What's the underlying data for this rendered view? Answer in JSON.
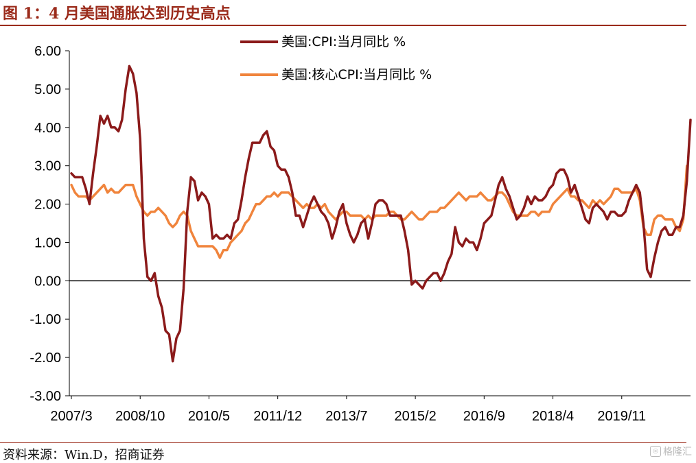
{
  "header": {
    "title": "图 1：4 月美国通胀达到历史高点"
  },
  "footer": {
    "source": "资料来源：Win.D，招商证券",
    "watermark": "格隆汇"
  },
  "colors": {
    "accent": "#9b2b1b",
    "cpi": "#8b1a1a",
    "core": "#f0843c"
  },
  "chart_data": {
    "type": "line",
    "title": "4 月美国通胀达到历史高点",
    "xlabel": "",
    "ylabel": "",
    "ylim": [
      -3.0,
      6.0
    ],
    "yticks": [
      6.0,
      5.0,
      4.0,
      3.0,
      2.0,
      1.0,
      0.0,
      -1.0,
      -2.0,
      -3.0
    ],
    "ytick_labels": [
      "6.00",
      "5.00",
      "4.00",
      "3.00",
      "2.00",
      "1.00",
      "0.00",
      "-1.00",
      "-2.00",
      "-3.00"
    ],
    "x_start": "2007/3",
    "x_end": "2021/4",
    "xtick_labels": [
      "2007/3",
      "2008/10",
      "2010/5",
      "2011/12",
      "2013/7",
      "2015/2",
      "2016/9",
      "2018/4",
      "2019/11"
    ],
    "xtick_index": [
      0,
      19,
      38,
      57,
      76,
      95,
      114,
      133,
      152
    ],
    "legend_position": "top-center",
    "series": [
      {
        "name": "美国:CPI:当月同比 %",
        "color": "#8b1a1a",
        "values": [
          2.8,
          2.7,
          2.7,
          2.7,
          2.4,
          2.0,
          2.8,
          3.5,
          4.3,
          4.1,
          4.3,
          4.0,
          4.0,
          3.9,
          4.2,
          5.0,
          5.6,
          5.4,
          4.9,
          3.7,
          1.1,
          0.1,
          0.0,
          0.2,
          -0.4,
          -0.7,
          -1.3,
          -1.4,
          -2.1,
          -1.5,
          -1.3,
          -0.2,
          1.8,
          2.7,
          2.6,
          2.1,
          2.3,
          2.2,
          2.0,
          1.1,
          1.2,
          1.1,
          1.1,
          1.2,
          1.1,
          1.5,
          1.6,
          2.1,
          2.7,
          3.2,
          3.6,
          3.6,
          3.6,
          3.8,
          3.9,
          3.5,
          3.4,
          3.0,
          2.9,
          2.9,
          2.7,
          2.3,
          1.7,
          1.7,
          1.4,
          1.7,
          2.0,
          2.2,
          2.0,
          1.8,
          1.7,
          1.5,
          1.1,
          1.4,
          1.8,
          2.0,
          1.5,
          1.2,
          1.0,
          1.2,
          1.5,
          1.6,
          1.1,
          1.5,
          2.0,
          2.1,
          2.1,
          2.0,
          1.7,
          1.7,
          1.7,
          1.7,
          1.3,
          0.8,
          -0.1,
          0.0,
          -0.1,
          -0.2,
          0.0,
          0.1,
          0.2,
          0.2,
          0.0,
          0.2,
          0.5,
          0.7,
          1.4,
          1.0,
          0.9,
          1.1,
          1.0,
          1.0,
          0.8,
          1.1,
          1.5,
          1.6,
          1.7,
          2.1,
          2.5,
          2.7,
          2.4,
          2.2,
          1.9,
          1.6,
          1.7,
          1.9,
          2.2,
          2.0,
          2.2,
          2.1,
          2.1,
          2.2,
          2.4,
          2.5,
          2.8,
          2.9,
          2.9,
          2.7,
          2.3,
          2.5,
          2.2,
          1.9,
          1.6,
          1.5,
          1.9,
          2.0,
          1.9,
          1.8,
          1.6,
          1.8,
          1.8,
          1.7,
          1.7,
          1.8,
          2.1,
          2.3,
          2.5,
          2.3,
          1.5,
          0.3,
          0.1,
          0.6,
          1.0,
          1.3,
          1.4,
          1.2,
          1.2,
          1.4,
          1.4,
          1.7,
          2.6,
          4.2
        ]
      },
      {
        "name": "美国:核心CPI:当月同比 %",
        "color": "#f0843c",
        "values": [
          2.5,
          2.3,
          2.2,
          2.2,
          2.2,
          2.1,
          2.2,
          2.3,
          2.4,
          2.5,
          2.3,
          2.4,
          2.3,
          2.3,
          2.4,
          2.5,
          2.5,
          2.5,
          2.2,
          2.0,
          1.8,
          1.7,
          1.8,
          1.8,
          1.9,
          1.8,
          1.7,
          1.5,
          1.4,
          1.5,
          1.7,
          1.8,
          1.7,
          1.3,
          1.1,
          0.9,
          0.9,
          0.9,
          0.9,
          0.9,
          0.8,
          0.6,
          0.8,
          0.8,
          1.0,
          1.1,
          1.2,
          1.3,
          1.5,
          1.6,
          1.8,
          2.0,
          2.0,
          2.1,
          2.2,
          2.2,
          2.3,
          2.2,
          2.3,
          2.3,
          2.3,
          2.2,
          2.1,
          2.0,
          1.9,
          2.0,
          1.9,
          1.9,
          2.0,
          1.9,
          2.0,
          1.8,
          1.7,
          1.6,
          1.7,
          1.8,
          1.8,
          1.7,
          1.7,
          1.7,
          1.7,
          1.6,
          1.7,
          1.6,
          1.7,
          1.7,
          1.7,
          1.7,
          1.8,
          1.8,
          1.7,
          1.6,
          1.6,
          1.7,
          1.8,
          1.7,
          1.6,
          1.6,
          1.7,
          1.8,
          1.8,
          1.8,
          1.9,
          1.9,
          2.0,
          2.1,
          2.2,
          2.3,
          2.2,
          2.1,
          2.2,
          2.2,
          2.2,
          2.3,
          2.2,
          2.1,
          2.1,
          2.2,
          2.3,
          2.3,
          2.2,
          2.0,
          1.8,
          1.7,
          1.7,
          1.7,
          1.7,
          1.8,
          1.8,
          1.7,
          1.8,
          1.8,
          1.8,
          2.0,
          2.1,
          2.2,
          2.3,
          2.4,
          2.2,
          2.2,
          2.1,
          2.1,
          2.0,
          1.9,
          2.1,
          2.0,
          2.1,
          2.0,
          2.1,
          2.2,
          2.4,
          2.4,
          2.3,
          2.3,
          2.3,
          2.3,
          2.4,
          2.1,
          1.4,
          1.2,
          1.2,
          1.6,
          1.7,
          1.7,
          1.6,
          1.6,
          1.6,
          1.4,
          1.3,
          1.6,
          3.0
        ]
      }
    ]
  }
}
